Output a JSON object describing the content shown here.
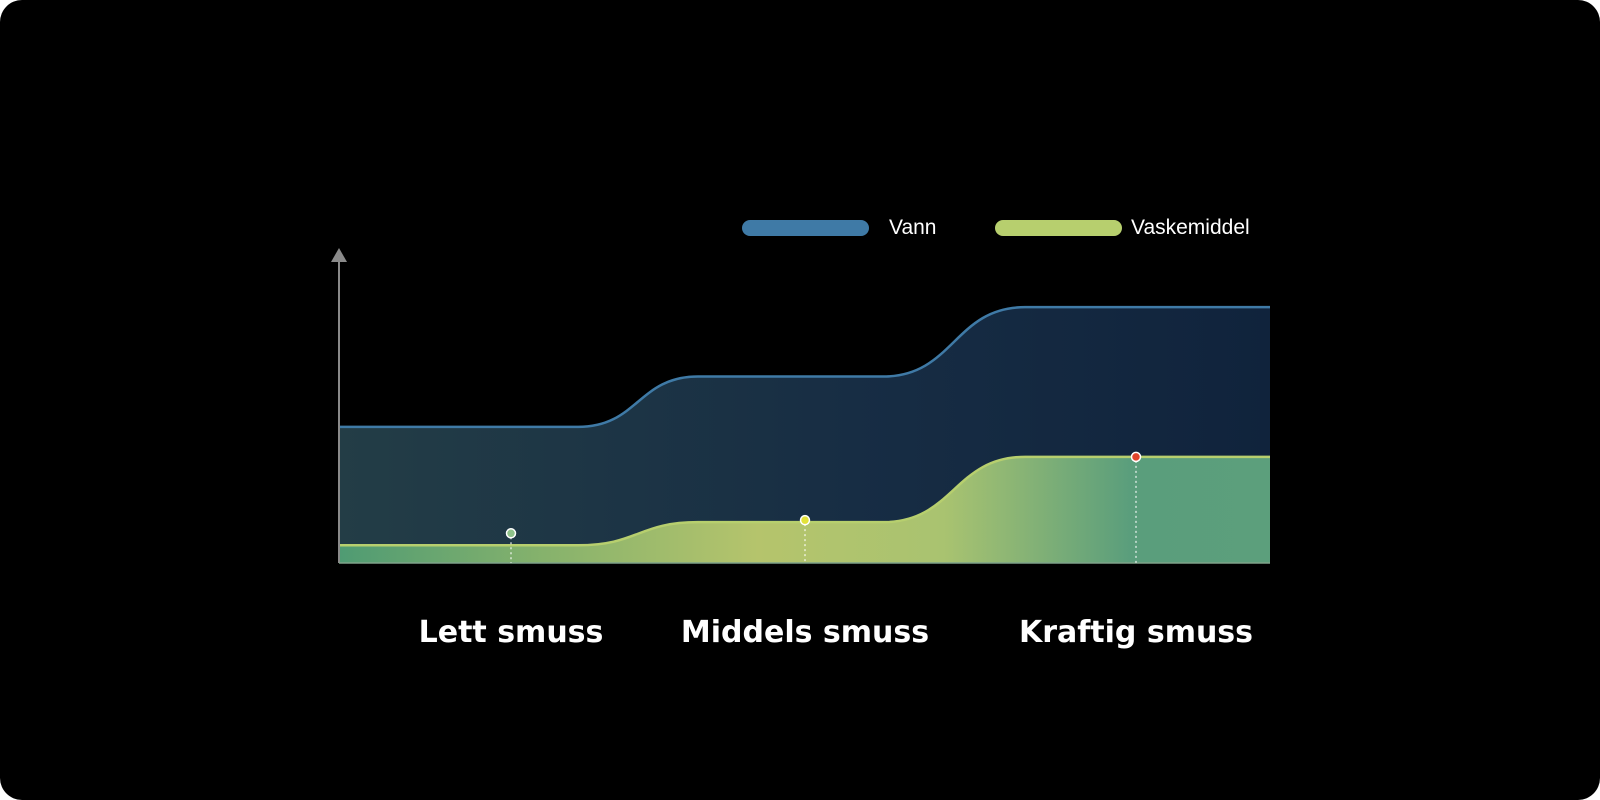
{
  "chart_data": {
    "type": "area",
    "title": "",
    "xlabel": "",
    "ylabel": "",
    "categories": [
      "Lett smuss",
      "Middels smuss",
      "Kraftig smuss"
    ],
    "series": [
      {
        "name": "Vann",
        "values": [
          1.0,
          1.37,
          1.88
        ],
        "color": "#3f7aa6"
      },
      {
        "name": "Vaskemiddel",
        "values": [
          0.13,
          0.3,
          0.78
        ],
        "color": "#b7cf6e"
      }
    ],
    "marker_colors": [
      "#8fc28a",
      "#e3e23a",
      "#e0432c"
    ],
    "grid": false,
    "legend_position": "top-right",
    "ylim": [
      0,
      2.3
    ]
  }
}
